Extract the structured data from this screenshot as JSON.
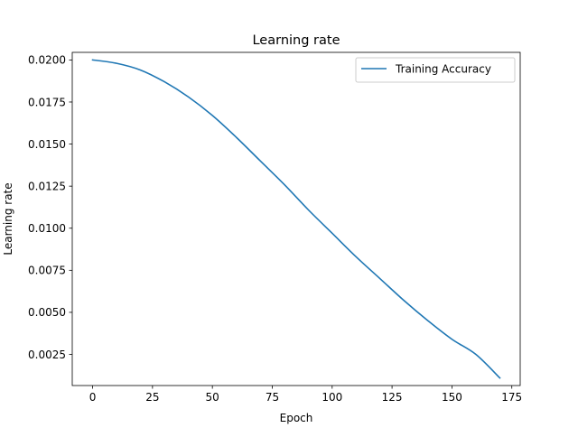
{
  "chart_data": {
    "type": "line",
    "title": "Learning rate",
    "xlabel": "Epoch",
    "ylabel": "Learning rate",
    "xlim": [
      -8.5,
      178.5
    ],
    "ylim": [
      0.00065,
      0.02045
    ],
    "xticks": [
      0,
      25,
      50,
      75,
      100,
      125,
      150,
      175
    ],
    "xtick_labels": [
      "0",
      "25",
      "50",
      "75",
      "100",
      "125",
      "150",
      "175"
    ],
    "yticks": [
      0.0025,
      0.005,
      0.0075,
      0.01,
      0.0125,
      0.015,
      0.0175,
      0.02
    ],
    "ytick_labels": [
      "0.0025",
      "0.0050",
      "0.0075",
      "0.0100",
      "0.0125",
      "0.0150",
      "0.0175",
      "0.0200"
    ],
    "grid": false,
    "legend_position": "top-right",
    "series": [
      {
        "name": "Training Accuracy",
        "color": "#1f77b4",
        "x": [
          0,
          10,
          20,
          30,
          40,
          50,
          60,
          70,
          80,
          90,
          100,
          110,
          120,
          130,
          140,
          150,
          160,
          170
        ],
        "y": [
          0.02,
          0.0198,
          0.0194,
          0.0187,
          0.0178,
          0.0167,
          0.0154,
          0.014,
          0.0126,
          0.0111,
          0.0097,
          0.0083,
          0.007,
          0.0057,
          0.0045,
          0.0034,
          0.0025,
          0.0011
        ]
      }
    ]
  }
}
